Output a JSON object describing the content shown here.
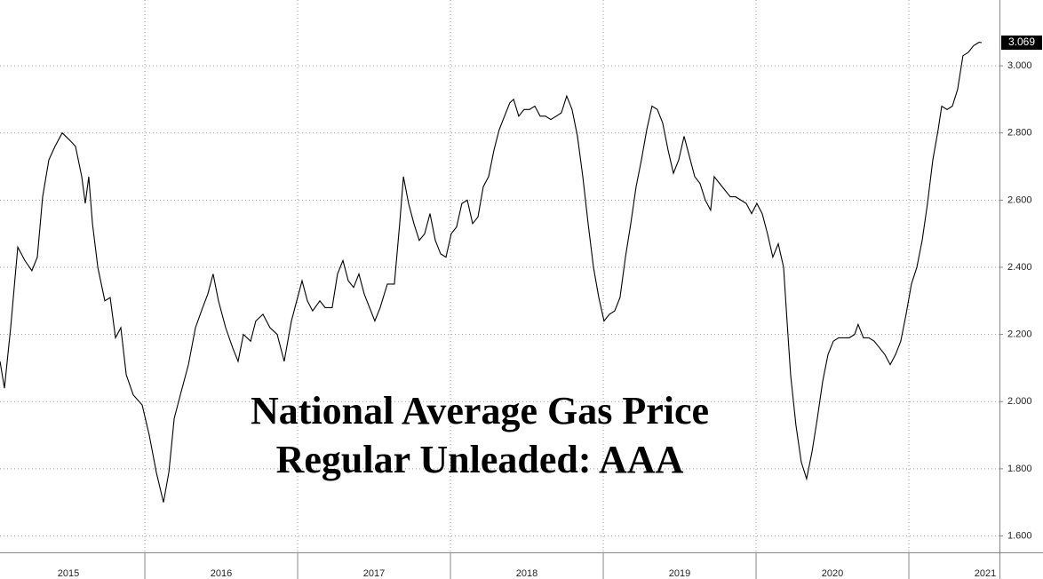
{
  "chart_data": {
    "type": "line",
    "title": "National Average Gas Price",
    "subtitle": "Regular Unleaded: AAA",
    "x": [
      2015.052,
      2015.081,
      2015.122,
      2015.168,
      2015.215,
      2015.261,
      2015.296,
      2015.331,
      2015.372,
      2015.412,
      2015.459,
      2015.505,
      2015.546,
      2015.587,
      2015.61,
      2015.633,
      2015.657,
      2015.692,
      2015.738,
      2015.773,
      2015.808,
      2015.843,
      2015.878,
      2015.924,
      2015.982,
      2016.029,
      2016.075,
      2016.122,
      2016.157,
      2016.192,
      2016.238,
      2016.285,
      2016.331,
      2016.378,
      2016.412,
      2016.447,
      2016.482,
      2016.529,
      2016.575,
      2016.61,
      2016.645,
      2016.692,
      2016.726,
      2016.773,
      2016.819,
      2016.866,
      2016.912,
      2016.959,
      2016.994,
      2017.029,
      2017.064,
      2017.098,
      2017.145,
      2017.18,
      2017.226,
      2017.261,
      2017.296,
      2017.331,
      2017.366,
      2017.401,
      2017.436,
      2017.471,
      2017.505,
      2017.54,
      2017.587,
      2017.633,
      2017.668,
      2017.692,
      2017.726,
      2017.761,
      2017.796,
      2017.831,
      2017.866,
      2017.901,
      2017.936,
      2017.971,
      2018.005,
      2018.04,
      2018.075,
      2018.11,
      2018.145,
      2018.18,
      2018.215,
      2018.25,
      2018.285,
      2018.319,
      2018.354,
      2018.389,
      2018.413,
      2018.447,
      2018.482,
      2018.517,
      2018.552,
      2018.587,
      2018.622,
      2018.657,
      2018.692,
      2018.726,
      2018.761,
      2018.796,
      2018.831,
      2018.866,
      2018.901,
      2018.936,
      2018.971,
      2019.005,
      2019.04,
      2019.075,
      2019.11,
      2019.145,
      2019.18,
      2019.215,
      2019.25,
      2019.285,
      2019.319,
      2019.354,
      2019.389,
      2019.424,
      2019.459,
      2019.494,
      2019.529,
      2019.564,
      2019.599,
      2019.633,
      2019.668,
      2019.703,
      2019.726,
      2019.761,
      2019.796,
      2019.831,
      2019.866,
      2019.901,
      2019.936,
      2019.971,
      2020.005,
      2020.04,
      2020.075,
      2020.11,
      2020.145,
      2020.18,
      2020.203,
      2020.226,
      2020.261,
      2020.296,
      2020.331,
      2020.366,
      2020.401,
      2020.436,
      2020.471,
      2020.506,
      2020.54,
      2020.575,
      2020.61,
      2020.645,
      2020.668,
      2020.703,
      2020.738,
      2020.773,
      2020.808,
      2020.843,
      2020.878,
      2020.913,
      2020.947,
      2020.982,
      2021.017,
      2021.052,
      2021.087,
      2021.122,
      2021.157,
      2021.192,
      2021.215,
      2021.25,
      2021.285,
      2021.319,
      2021.354,
      2021.389,
      2021.424,
      2021.459,
      2021.477
    ],
    "series": [
      {
        "color": "#000000",
        "values": [
          2.12,
          2.04,
          2.22,
          2.46,
          2.42,
          2.39,
          2.43,
          2.61,
          2.72,
          2.76,
          2.8,
          2.78,
          2.76,
          2.67,
          2.59,
          2.67,
          2.53,
          2.4,
          2.3,
          2.31,
          2.19,
          2.22,
          2.08,
          2.02,
          1.99,
          1.9,
          1.79,
          1.7,
          1.79,
          1.95,
          2.03,
          2.11,
          2.22,
          2.28,
          2.32,
          2.38,
          2.3,
          2.22,
          2.16,
          2.12,
          2.2,
          2.18,
          2.24,
          2.26,
          2.22,
          2.2,
          2.12,
          2.24,
          2.3,
          2.36,
          2.3,
          2.27,
          2.3,
          2.28,
          2.28,
          2.38,
          2.42,
          2.36,
          2.34,
          2.38,
          2.32,
          2.28,
          2.24,
          2.28,
          2.35,
          2.35,
          2.53,
          2.67,
          2.59,
          2.53,
          2.48,
          2.5,
          2.56,
          2.48,
          2.44,
          2.43,
          2.5,
          2.52,
          2.59,
          2.6,
          2.53,
          2.55,
          2.64,
          2.67,
          2.75,
          2.81,
          2.85,
          2.89,
          2.9,
          2.85,
          2.87,
          2.87,
          2.88,
          2.85,
          2.85,
          2.84,
          2.85,
          2.86,
          2.91,
          2.87,
          2.79,
          2.67,
          2.53,
          2.4,
          2.31,
          2.24,
          2.26,
          2.27,
          2.31,
          2.43,
          2.53,
          2.64,
          2.72,
          2.81,
          2.88,
          2.87,
          2.83,
          2.75,
          2.68,
          2.72,
          2.79,
          2.73,
          2.67,
          2.65,
          2.6,
          2.57,
          2.67,
          2.65,
          2.63,
          2.61,
          2.61,
          2.6,
          2.59,
          2.56,
          2.59,
          2.56,
          2.5,
          2.43,
          2.47,
          2.4,
          2.24,
          2.08,
          1.93,
          1.82,
          1.77,
          1.85,
          1.95,
          2.06,
          2.14,
          2.18,
          2.19,
          2.19,
          2.19,
          2.2,
          2.23,
          2.19,
          2.19,
          2.18,
          2.16,
          2.14,
          2.11,
          2.14,
          2.18,
          2.26,
          2.35,
          2.4,
          2.48,
          2.59,
          2.72,
          2.81,
          2.88,
          2.87,
          2.88,
          2.93,
          3.03,
          3.04,
          3.06,
          3.07,
          3.069
        ]
      }
    ],
    "xlim": [
      2015.052,
      2021.593
    ],
    "xticks": [
      {
        "value": 2015.5,
        "label": "2015"
      },
      {
        "value": 2016.5,
        "label": "2016"
      },
      {
        "value": 2017.5,
        "label": "2017"
      },
      {
        "value": 2018.5,
        "label": "2018"
      },
      {
        "value": 2019.5,
        "label": "2019"
      },
      {
        "value": 2020.5,
        "label": "2020"
      },
      {
        "value": 2021.5,
        "label": "2021"
      }
    ],
    "ylim": [
      1.551,
      3.196
    ],
    "yticks": [
      {
        "value": 1.6,
        "label": "1.600"
      },
      {
        "value": 1.8,
        "label": "1.800"
      },
      {
        "value": 2.0,
        "label": "2.000"
      },
      {
        "value": 2.2,
        "label": "2.200"
      },
      {
        "value": 2.4,
        "label": "2.400"
      },
      {
        "value": 2.6,
        "label": "2.600"
      },
      {
        "value": 2.8,
        "label": "2.800"
      },
      {
        "value": 3.0,
        "label": "3.000"
      }
    ],
    "grid": true
  }
}
